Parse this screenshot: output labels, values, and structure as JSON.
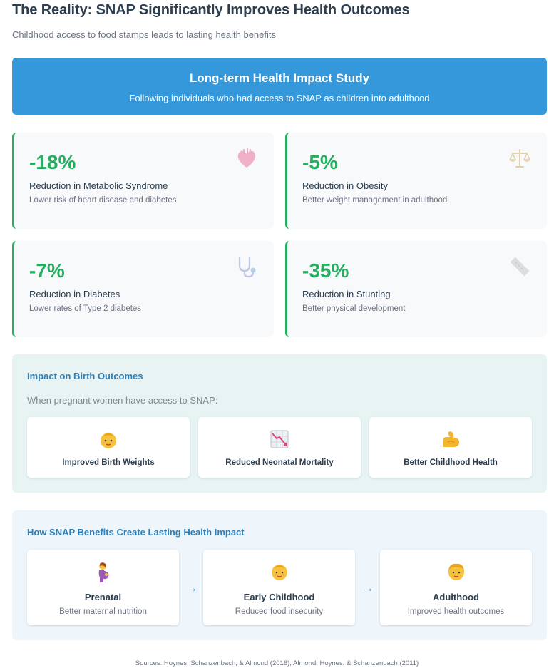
{
  "header": {
    "title": "The Reality: SNAP Significantly Improves Health Outcomes",
    "subtitle": "Childhood access to food stamps leads to lasting health benefits"
  },
  "banner": {
    "title": "Long-term Health Impact Study",
    "subtitle": "Following individuals who had access to SNAP as children into adulthood"
  },
  "stats": [
    {
      "value": "-18%",
      "label": "Reduction in Metabolic Syndrome",
      "desc": "Lower risk of heart disease and diabetes",
      "icon": "anatomical-heart-icon"
    },
    {
      "value": "-5%",
      "label": "Reduction in Obesity",
      "desc": "Better weight management in adulthood",
      "icon": "balance-scale-icon"
    },
    {
      "value": "-7%",
      "label": "Reduction in Diabetes",
      "desc": "Lower rates of Type 2 diabetes",
      "icon": "stethoscope-icon"
    },
    {
      "value": "-35%",
      "label": "Reduction in Stunting",
      "desc": "Better physical development",
      "icon": "ruler-icon"
    }
  ],
  "birth_outcomes": {
    "title": "Impact on Birth Outcomes",
    "subtitle": "When pregnant women have access to SNAP:",
    "items": [
      {
        "label": "Improved Birth Weights",
        "icon": "baby-icon"
      },
      {
        "label": "Reduced Neonatal Mortality",
        "icon": "chart-decreasing-icon"
      },
      {
        "label": "Better Childhood Health",
        "icon": "flexed-biceps-icon"
      }
    ]
  },
  "lasting_impact": {
    "title": "How SNAP Benefits Create Lasting Health Impact",
    "arrow": "→",
    "stages": [
      {
        "name": "Prenatal",
        "desc": "Better maternal nutrition",
        "icon": "pregnant-woman-icon"
      },
      {
        "name": "Early Childhood",
        "desc": "Reduced food insecurity",
        "icon": "baby-icon"
      },
      {
        "name": "Adulthood",
        "desc": "Improved health outcomes",
        "icon": "person-icon"
      }
    ]
  },
  "sources": "Sources: Hoynes, Schanzenbach, & Almond (2016); Almond, Hoynes, & Schanzenbach (2011)",
  "colors": {
    "accent": "#3498db",
    "positive": "#27ae60",
    "heading": "#2c3e50",
    "section_title": "#2f7fb8"
  }
}
